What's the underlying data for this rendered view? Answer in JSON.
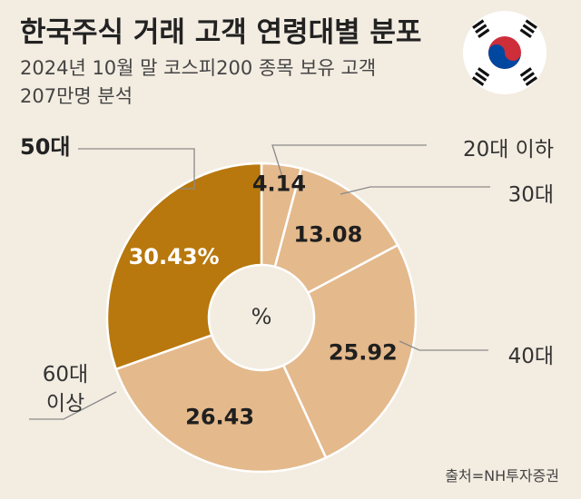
{
  "header": {
    "title": "한국주식 거래 고객 연령대별 분포",
    "subtitle_line1": "2024년 10월 말 코스피200 종목 보유 고객",
    "subtitle_line2": "207만명 분석"
  },
  "center_label": "%",
  "source": "출처=NH투자증권",
  "colors": {
    "background": "#f3ece1",
    "slice_light": "#e4b98c",
    "slice_highlight": "#b8780d",
    "flag_red": "#cd2e3a",
    "flag_blue": "#0047a0"
  },
  "chart_data": {
    "type": "pie",
    "variant": "donut",
    "title": "한국주식 거래 고객 연령대별 분포",
    "unit": "%",
    "categories": [
      "20대 이하",
      "30대",
      "40대",
      "60대 이상",
      "50대"
    ],
    "labels_display": [
      [
        "20대 이하"
      ],
      [
        "30대"
      ],
      [
        "40대"
      ],
      [
        "60대",
        "이상"
      ],
      [
        "50대"
      ]
    ],
    "values": [
      4.14,
      13.08,
      25.92,
      26.43,
      30.43
    ],
    "value_labels": [
      "4.14",
      "13.08",
      "25.92",
      "26.43",
      "30.43%"
    ],
    "highlight": "50대"
  }
}
